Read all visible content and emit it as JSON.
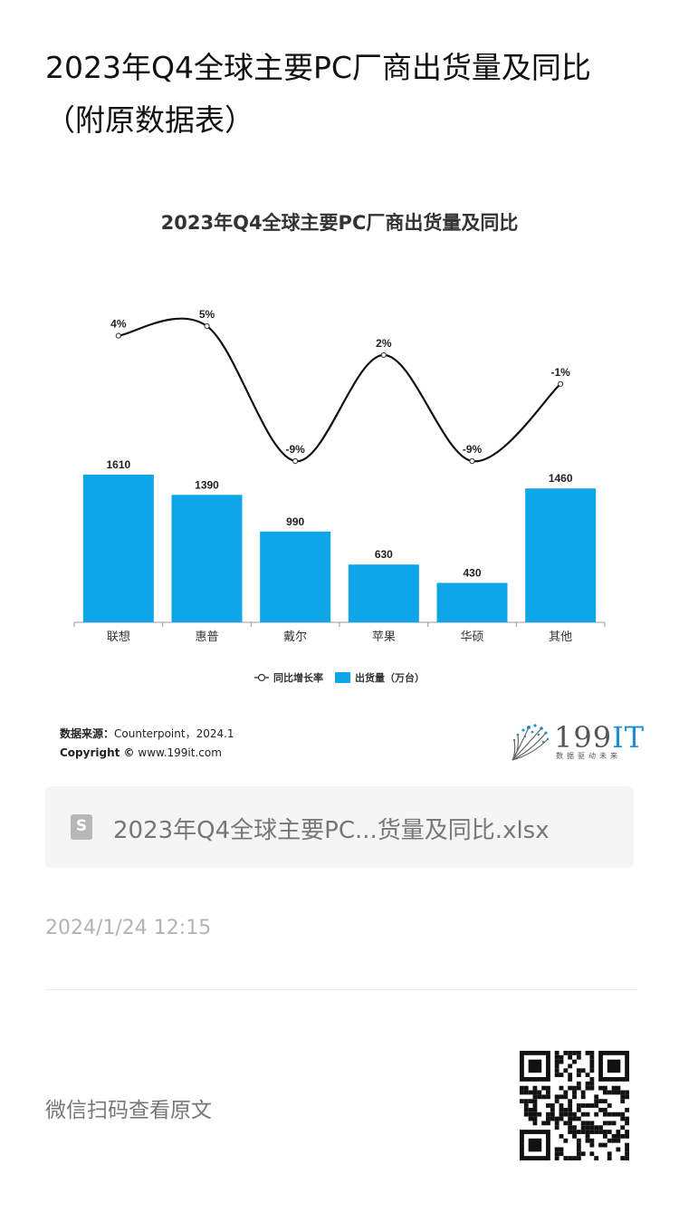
{
  "article": {
    "title": "2023年Q4全球主要PC厂商出货量及同比（附原数据表）",
    "timestamp": "2024/1/24 12:15",
    "qr_caption": "微信扫码查看原文"
  },
  "attachment": {
    "file_name": "2023年Q4全球主要PC...货量及同比.xlsx",
    "icon_letter": "S"
  },
  "source": {
    "label": "数据来源：",
    "text": "Counterpoint，2024.1",
    "copyright_label": "Copyright ©",
    "copyright_text": "www.199it.com"
  },
  "logo": {
    "text": "199",
    "text_accent": "IT",
    "subtitle": "数据驱动未来"
  },
  "colors": {
    "bar": "#0ea5e9",
    "line": "#111111",
    "logo_accent": "#1a8fd6"
  },
  "chart_data": {
    "type": "bar",
    "title": "2023年Q4全球主要PC厂商出货量及同比",
    "categories": [
      "联想",
      "惠普",
      "戴尔",
      "苹果",
      "华硕",
      "其他"
    ],
    "series": [
      {
        "name": "出货量（万台）",
        "type": "bar",
        "values": [
          1610,
          1390,
          990,
          630,
          430,
          1460
        ],
        "labels": [
          "1610",
          "1390",
          "990",
          "630",
          "430",
          "1460"
        ]
      },
      {
        "name": "同比增长率",
        "type": "line",
        "values": [
          4,
          5,
          -9,
          2,
          -9,
          -1
        ],
        "labels": [
          "4%",
          "5%",
          "-9%",
          "2%",
          "-9%",
          "-1%"
        ]
      }
    ],
    "legend_position": "bottom",
    "grid": false
  }
}
